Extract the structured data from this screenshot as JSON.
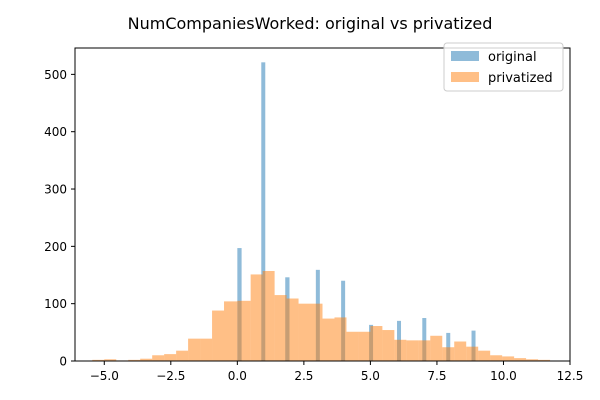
{
  "chart_data": {
    "type": "bar",
    "title": "NumCompaniesWorked: original vs privatized",
    "xlabel": "",
    "ylabel": "",
    "xlim": [
      -6.1,
      12.5
    ],
    "ylim": [
      0,
      546
    ],
    "x_ticks": [
      -5.0,
      -2.5,
      0.0,
      2.5,
      5.0,
      7.5,
      10.0,
      12.5
    ],
    "x_tick_labels": [
      "−5.0",
      "−2.5",
      "0.0",
      "2.5",
      "5.0",
      "7.5",
      "10.0",
      "12.5"
    ],
    "y_ticks": [
      0,
      100,
      200,
      300,
      400,
      500
    ],
    "y_tick_labels": [
      "0",
      "100",
      "200",
      "300",
      "400",
      "500"
    ],
    "grid": false,
    "legend_position": "top-right",
    "series": [
      {
        "name": "original",
        "color": "#1f77b4",
        "alpha": 0.5,
        "bins": [
          {
            "x0": 0.0,
            "x1": 0.16,
            "value": 197
          },
          {
            "x0": 0.45,
            "x1": 0.6,
            "value": 0
          },
          {
            "x0": 0.9,
            "x1": 1.05,
            "value": 521
          },
          {
            "x0": 1.35,
            "x1": 1.5,
            "value": 0
          },
          {
            "x0": 1.8,
            "x1": 1.96,
            "value": 146
          },
          {
            "x0": 2.25,
            "x1": 2.4,
            "value": 0
          },
          {
            "x0": 2.95,
            "x1": 3.1,
            "value": 159
          },
          {
            "x0": 3.6,
            "x1": 3.75,
            "value": 0
          },
          {
            "x0": 3.9,
            "x1": 4.05,
            "value": 140
          },
          {
            "x0": 4.3,
            "x1": 4.45,
            "value": 0
          },
          {
            "x0": 4.95,
            "x1": 5.1,
            "value": 63
          },
          {
            "x0": 5.5,
            "x1": 5.65,
            "value": 0
          },
          {
            "x0": 6.0,
            "x1": 6.15,
            "value": 70
          },
          {
            "x0": 6.5,
            "x1": 6.65,
            "value": 0
          },
          {
            "x0": 6.95,
            "x1": 7.1,
            "value": 75
          },
          {
            "x0": 7.4,
            "x1": 7.55,
            "value": 0
          },
          {
            "x0": 7.85,
            "x1": 8.0,
            "value": 49
          },
          {
            "x0": 8.3,
            "x1": 8.45,
            "value": 0
          },
          {
            "x0": 8.8,
            "x1": 8.95,
            "value": 53
          }
        ]
      },
      {
        "name": "privatized",
        "color": "#ff7f0e",
        "alpha": 0.5,
        "bins": [
          {
            "x0": -5.45,
            "x1": -5.0,
            "value": 2
          },
          {
            "x0": -5.0,
            "x1": -4.55,
            "value": 3
          },
          {
            "x0": -4.55,
            "x1": -4.1,
            "value": 1
          },
          {
            "x0": -4.1,
            "x1": -3.65,
            "value": 2
          },
          {
            "x0": -3.65,
            "x1": -3.2,
            "value": 4
          },
          {
            "x0": -3.2,
            "x1": -2.75,
            "value": 10
          },
          {
            "x0": -2.75,
            "x1": -2.3,
            "value": 12
          },
          {
            "x0": -2.3,
            "x1": -1.85,
            "value": 18
          },
          {
            "x0": -1.85,
            "x1": -1.4,
            "value": 39
          },
          {
            "x0": -1.4,
            "x1": -0.95,
            "value": 39
          },
          {
            "x0": -0.95,
            "x1": -0.5,
            "value": 88
          },
          {
            "x0": -0.5,
            "x1": 0.0,
            "value": 104
          },
          {
            "x0": 0.0,
            "x1": 0.5,
            "value": 105
          },
          {
            "x0": 0.5,
            "x1": 0.95,
            "value": 151
          },
          {
            "x0": 0.95,
            "x1": 1.4,
            "value": 157
          },
          {
            "x0": 1.4,
            "x1": 1.85,
            "value": 115
          },
          {
            "x0": 1.85,
            "x1": 2.3,
            "value": 109
          },
          {
            "x0": 2.3,
            "x1": 2.75,
            "value": 100
          },
          {
            "x0": 2.75,
            "x1": 3.2,
            "value": 100
          },
          {
            "x0": 3.2,
            "x1": 3.65,
            "value": 74
          },
          {
            "x0": 3.65,
            "x1": 4.1,
            "value": 76
          },
          {
            "x0": 4.1,
            "x1": 4.55,
            "value": 51
          },
          {
            "x0": 4.55,
            "x1": 5.0,
            "value": 51
          },
          {
            "x0": 5.0,
            "x1": 5.45,
            "value": 61
          },
          {
            "x0": 5.45,
            "x1": 5.9,
            "value": 54
          },
          {
            "x0": 5.9,
            "x1": 6.35,
            "value": 37
          },
          {
            "x0": 6.35,
            "x1": 6.8,
            "value": 36
          },
          {
            "x0": 6.8,
            "x1": 7.25,
            "value": 36
          },
          {
            "x0": 7.25,
            "x1": 7.7,
            "value": 44
          },
          {
            "x0": 7.7,
            "x1": 8.15,
            "value": 24
          },
          {
            "x0": 8.15,
            "x1": 8.6,
            "value": 34
          },
          {
            "x0": 8.6,
            "x1": 9.05,
            "value": 25
          },
          {
            "x0": 9.05,
            "x1": 9.5,
            "value": 18
          },
          {
            "x0": 9.5,
            "x1": 9.95,
            "value": 10
          },
          {
            "x0": 9.95,
            "x1": 10.4,
            "value": 8
          },
          {
            "x0": 10.4,
            "x1": 10.85,
            "value": 5
          },
          {
            "x0": 10.85,
            "x1": 11.3,
            "value": 3
          },
          {
            "x0": 11.3,
            "x1": 11.75,
            "value": 2
          }
        ]
      }
    ]
  }
}
